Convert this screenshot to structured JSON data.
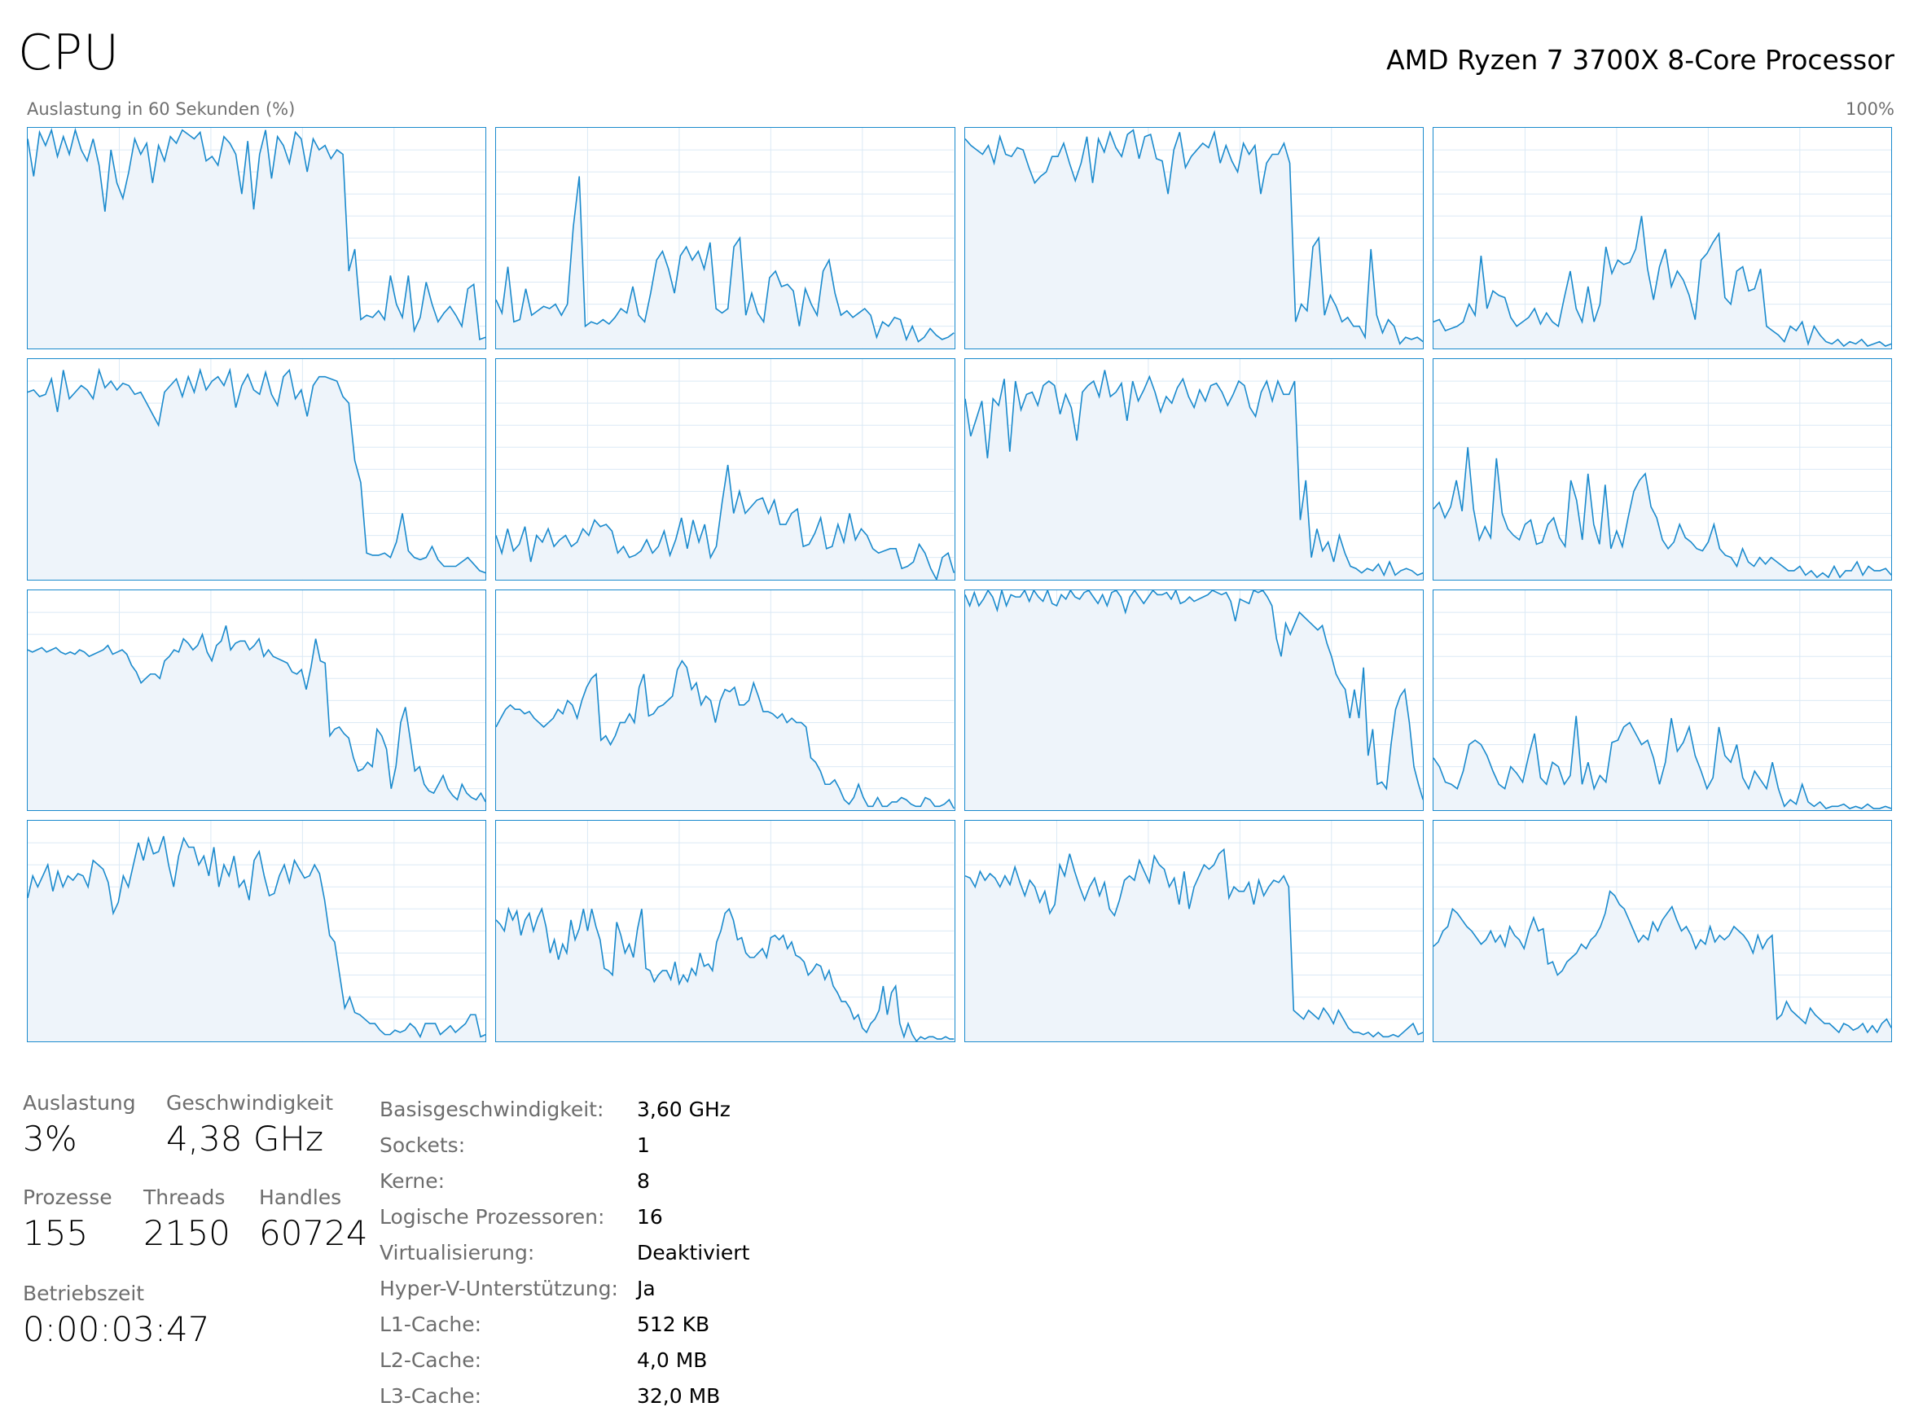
{
  "header": {
    "title": "CPU",
    "processor": "AMD Ryzen 7 3700X 8-Core Processor",
    "graph_label": "Auslastung in 60 Sekunden (%)",
    "graph_max": "100%"
  },
  "colors": {
    "line": "#1a8acd",
    "fill": "#eef4fa",
    "grid": "#dbe9f5"
  },
  "chart_data": {
    "type": "line",
    "y_range": [
      0,
      100
    ],
    "x_range_seconds": [
      0,
      60
    ],
    "grid": true,
    "cores": [
      [
        95,
        78,
        98,
        92,
        99,
        87,
        96,
        88,
        99,
        90,
        85,
        95,
        83,
        62,
        90,
        75,
        68,
        80,
        95,
        88,
        93,
        75,
        92,
        85,
        96,
        93,
        99,
        97,
        95,
        98,
        85,
        87,
        83,
        96,
        93,
        88,
        70,
        94,
        63,
        88,
        99,
        77,
        96,
        92,
        84,
        98,
        95,
        80,
        95,
        90,
        92,
        86,
        90,
        88,
        35,
        45,
        13,
        15,
        14,
        17,
        13,
        33,
        20,
        14,
        33,
        8,
        14,
        30,
        20,
        12,
        16,
        19,
        15,
        10,
        27,
        29,
        4,
        5
      ],
      [
        22,
        16,
        37,
        12,
        13,
        27,
        15,
        17,
        19,
        18,
        20,
        15,
        20,
        55,
        78,
        10,
        12,
        11,
        13,
        11,
        14,
        18,
        16,
        28,
        15,
        12,
        25,
        40,
        44,
        36,
        25,
        42,
        46,
        40,
        44,
        36,
        48,
        18,
        16,
        18,
        46,
        50,
        15,
        25,
        16,
        12,
        32,
        35,
        28,
        29,
        26,
        10,
        27,
        20,
        15,
        35,
        40,
        25,
        15,
        17,
        14,
        16,
        18,
        15,
        5,
        12,
        10,
        14,
        13,
        4,
        10,
        3,
        5,
        9,
        6,
        4,
        5,
        7
      ],
      [
        95,
        92,
        90,
        88,
        92,
        84,
        96,
        88,
        87,
        91,
        90,
        82,
        75,
        78,
        80,
        87,
        87,
        93,
        84,
        76,
        84,
        96,
        75,
        95,
        89,
        98,
        91,
        87,
        97,
        99,
        86,
        96,
        97,
        86,
        85,
        70,
        90,
        98,
        82,
        87,
        90,
        93,
        91,
        98,
        84,
        92,
        85,
        80,
        93,
        88,
        92,
        70,
        84,
        88,
        88,
        93,
        84,
        12,
        20,
        17,
        46,
        50,
        15,
        24,
        19,
        12,
        14,
        10,
        10,
        5,
        45,
        15,
        7,
        13,
        10,
        2,
        5,
        4,
        5,
        3
      ],
      [
        12,
        13,
        8,
        9,
        10,
        12,
        20,
        15,
        42,
        18,
        26,
        24,
        23,
        14,
        10,
        12,
        14,
        18,
        11,
        16,
        12,
        10,
        23,
        35,
        18,
        12,
        28,
        12,
        20,
        46,
        34,
        40,
        38,
        39,
        45,
        60,
        36,
        22,
        37,
        45,
        28,
        35,
        31,
        24,
        13,
        40,
        43,
        48,
        52,
        23,
        20,
        35,
        37,
        26,
        27,
        36,
        10,
        8,
        6,
        3,
        10,
        8,
        12,
        2,
        10,
        6,
        3,
        2,
        4,
        1,
        3,
        2,
        4,
        1,
        2,
        3,
        1,
        2
      ],
      [
        85,
        86,
        83,
        84,
        91,
        76,
        95,
        82,
        85,
        88,
        86,
        82,
        95,
        87,
        90,
        86,
        89,
        88,
        84,
        85,
        80,
        75,
        70,
        85,
        88,
        91,
        83,
        92,
        85,
        95,
        86,
        90,
        92,
        88,
        95,
        78,
        88,
        93,
        86,
        84,
        94,
        84,
        79,
        92,
        95,
        82,
        86,
        74,
        88,
        92,
        92,
        91,
        90,
        83,
        80,
        54,
        44,
        12,
        11,
        11,
        12,
        10,
        17,
        30,
        13,
        10,
        9,
        10,
        15,
        9,
        6,
        6,
        6,
        8,
        10,
        7,
        4,
        3
      ],
      [
        20,
        12,
        23,
        13,
        16,
        24,
        8,
        20,
        17,
        23,
        15,
        18,
        20,
        15,
        17,
        23,
        20,
        27,
        24,
        25,
        22,
        12,
        15,
        10,
        11,
        13,
        18,
        12,
        15,
        22,
        11,
        18,
        28,
        14,
        27,
        17,
        25,
        10,
        15,
        35,
        52,
        30,
        40,
        30,
        33,
        36,
        37,
        30,
        36,
        25,
        25,
        30,
        32,
        15,
        16,
        21,
        28,
        14,
        15,
        25,
        17,
        30,
        18,
        23,
        20,
        14,
        12,
        13,
        14,
        14,
        5,
        6,
        8,
        16,
        12,
        5,
        0,
        10,
        12,
        3
      ],
      [
        82,
        65,
        73,
        81,
        55,
        82,
        79,
        91,
        58,
        90,
        77,
        84,
        85,
        79,
        88,
        90,
        88,
        75,
        84,
        78,
        63,
        85,
        88,
        90,
        83,
        95,
        83,
        85,
        89,
        72,
        90,
        81,
        86,
        92,
        85,
        76,
        83,
        80,
        87,
        91,
        83,
        78,
        86,
        81,
        88,
        89,
        85,
        79,
        84,
        90,
        88,
        78,
        74,
        85,
        90,
        81,
        90,
        84,
        84,
        90,
        27,
        45,
        10,
        23,
        13,
        17,
        8,
        20,
        12,
        6,
        5,
        3,
        5,
        4,
        7,
        2,
        8,
        2,
        4,
        5,
        4,
        2,
        3
      ],
      [
        32,
        35,
        28,
        33,
        45,
        31,
        60,
        32,
        18,
        24,
        19,
        55,
        30,
        23,
        20,
        18,
        25,
        27,
        16,
        17,
        25,
        28,
        19,
        15,
        45,
        36,
        18,
        48,
        25,
        16,
        43,
        14,
        22,
        15,
        28,
        40,
        45,
        48,
        33,
        28,
        18,
        14,
        17,
        25,
        19,
        17,
        14,
        13,
        17,
        25,
        14,
        11,
        10,
        6,
        14,
        8,
        6,
        10,
        7,
        10,
        8,
        6,
        4,
        4,
        6,
        2,
        4,
        1,
        3,
        1,
        6,
        1,
        4,
        4,
        8,
        2,
        6,
        4,
        4,
        5,
        2
      ],
      [
        73,
        72,
        73,
        74,
        72,
        73,
        74,
        72,
        71,
        72,
        71,
        73,
        72,
        70,
        71,
        72,
        73,
        75,
        71,
        72,
        73,
        71,
        66,
        63,
        58,
        60,
        62,
        62,
        60,
        68,
        70,
        73,
        72,
        78,
        76,
        73,
        75,
        80,
        72,
        68,
        75,
        77,
        84,
        73,
        76,
        77,
        77,
        73,
        75,
        78,
        70,
        73,
        70,
        69,
        68,
        67,
        63,
        62,
        64,
        55,
        65,
        78,
        68,
        67,
        34,
        37,
        38,
        35,
        33,
        24,
        18,
        19,
        22,
        20,
        37,
        34,
        28,
        10,
        20,
        40,
        47,
        33,
        18,
        20,
        12,
        9,
        8,
        12,
        16,
        10,
        7,
        5,
        12,
        8,
        6,
        5,
        8,
        4
      ],
      [
        38,
        42,
        46,
        48,
        46,
        46,
        44,
        45,
        42,
        40,
        38,
        40,
        42,
        46,
        44,
        50,
        48,
        42,
        50,
        56,
        60,
        62,
        32,
        34,
        30,
        34,
        40,
        40,
        44,
        40,
        56,
        62,
        43,
        44,
        47,
        48,
        50,
        52,
        64,
        68,
        65,
        55,
        58,
        48,
        52,
        50,
        40,
        50,
        55,
        54,
        56,
        48,
        48,
        50,
        58,
        52,
        45,
        45,
        44,
        42,
        44,
        40,
        42,
        40,
        40,
        38,
        24,
        22,
        18,
        12,
        12,
        14,
        10,
        5,
        3,
        6,
        12,
        6,
        2,
        2,
        6,
        2,
        2,
        4,
        4,
        6,
        5,
        3,
        2,
        2,
        6,
        5,
        2,
        2,
        3,
        5,
        1
      ],
      [
        98,
        93,
        99,
        93,
        96,
        100,
        97,
        91,
        100,
        93,
        98,
        97,
        97,
        100,
        95,
        100,
        97,
        95,
        100,
        94,
        93,
        98,
        96,
        100,
        97,
        96,
        99,
        100,
        97,
        94,
        98,
        93,
        99,
        100,
        97,
        90,
        97,
        100,
        97,
        94,
        97,
        100,
        98,
        98,
        99,
        96,
        100,
        94,
        95,
        97,
        95,
        96,
        97,
        98,
        100,
        99,
        98,
        99,
        95,
        86,
        96,
        95,
        94,
        100,
        99,
        100,
        97,
        93,
        78,
        70,
        85,
        80,
        85,
        90,
        88,
        86,
        84,
        82,
        84,
        76,
        70,
        62,
        58,
        55,
        42,
        55,
        42,
        65,
        25,
        37,
        12,
        13,
        10,
        30,
        46,
        52,
        55,
        40,
        20,
        12,
        5
      ],
      [
        24,
        20,
        13,
        12,
        10,
        18,
        30,
        32,
        30,
        25,
        18,
        12,
        10,
        20,
        17,
        13,
        25,
        35,
        15,
        12,
        22,
        20,
        12,
        16,
        43,
        12,
        22,
        10,
        16,
        13,
        31,
        32,
        38,
        40,
        35,
        30,
        32,
        24,
        12,
        22,
        42,
        27,
        31,
        38,
        25,
        18,
        10,
        15,
        38,
        25,
        22,
        30,
        15,
        10,
        18,
        14,
        10,
        22,
        10,
        2,
        5,
        3,
        12,
        4,
        2,
        4,
        1,
        2,
        2,
        3,
        1,
        2,
        1,
        3,
        1,
        1,
        2,
        1
      ],
      [
        65,
        75,
        70,
        75,
        80,
        68,
        77,
        70,
        75,
        73,
        76,
        75,
        70,
        82,
        80,
        78,
        72,
        58,
        63,
        75,
        70,
        80,
        90,
        82,
        92,
        85,
        86,
        93,
        80,
        70,
        84,
        92,
        88,
        88,
        80,
        84,
        75,
        88,
        70,
        80,
        75,
        84,
        70,
        73,
        64,
        82,
        86,
        75,
        66,
        67,
        75,
        80,
        72,
        82,
        78,
        74,
        75,
        80,
        76,
        64,
        48,
        45,
        30,
        15,
        20,
        13,
        12,
        10,
        8,
        8,
        5,
        3,
        3,
        5,
        4,
        5,
        8,
        6,
        2,
        8,
        8,
        8,
        3,
        5,
        7,
        4,
        6,
        8,
        12,
        12,
        2,
        3
      ],
      [
        55,
        53,
        50,
        60,
        55,
        59,
        48,
        55,
        58,
        50,
        56,
        60,
        52,
        40,
        46,
        37,
        44,
        40,
        55,
        46,
        51,
        60,
        50,
        60,
        52,
        46,
        33,
        32,
        30,
        54,
        48,
        40,
        44,
        38,
        51,
        60,
        33,
        32,
        27,
        30,
        32,
        32,
        28,
        36,
        26,
        30,
        27,
        33,
        30,
        40,
        34,
        35,
        32,
        45,
        50,
        58,
        60,
        55,
        46,
        47,
        40,
        38,
        38,
        40,
        42,
        38,
        47,
        48,
        46,
        48,
        42,
        45,
        39,
        38,
        36,
        30,
        32,
        35,
        34,
        28,
        32,
        25,
        22,
        18,
        18,
        15,
        10,
        12,
        6,
        4,
        8,
        10,
        14,
        25,
        12,
        22,
        25,
        8,
        2,
        8,
        3,
        0,
        2,
        1,
        2,
        2,
        1,
        1,
        2,
        1,
        1
      ],
      [
        75,
        74,
        70,
        77,
        73,
        76,
        74,
        70,
        75,
        71,
        79,
        72,
        66,
        73,
        70,
        63,
        68,
        58,
        62,
        80,
        75,
        85,
        77,
        70,
        64,
        70,
        74,
        66,
        72,
        60,
        57,
        64,
        73,
        75,
        73,
        82,
        77,
        72,
        84,
        80,
        78,
        70,
        74,
        62,
        77,
        60,
        70,
        75,
        80,
        78,
        80,
        85,
        87,
        65,
        70,
        68,
        68,
        72,
        62,
        73,
        66,
        70,
        73,
        72,
        75,
        70,
        14,
        12,
        10,
        14,
        12,
        10,
        15,
        12,
        8,
        14,
        10,
        6,
        4,
        4,
        3,
        4,
        2,
        4,
        2,
        2,
        3,
        2,
        4,
        6,
        8,
        3,
        4
      ],
      [
        43,
        45,
        50,
        52,
        60,
        58,
        55,
        52,
        50,
        47,
        44,
        46,
        50,
        45,
        48,
        43,
        52,
        48,
        46,
        42,
        50,
        56,
        50,
        51,
        35,
        36,
        30,
        32,
        36,
        38,
        40,
        44,
        42,
        46,
        48,
        52,
        58,
        68,
        66,
        62,
        60,
        55,
        50,
        45,
        48,
        46,
        54,
        50,
        55,
        58,
        61,
        55,
        50,
        52,
        48,
        42,
        46,
        44,
        52,
        45,
        48,
        46,
        48,
        52,
        50,
        48,
        45,
        40,
        48,
        42,
        46,
        48,
        10,
        12,
        18,
        14,
        12,
        10,
        8,
        15,
        12,
        10,
        8,
        8,
        6,
        4,
        8,
        7,
        5,
        6,
        8,
        4,
        7,
        4,
        8,
        10,
        6
      ]
    ]
  },
  "stats": {
    "auslastung_label": "Auslastung",
    "auslastung": "3%",
    "geschwindigkeit_label": "Geschwindigkeit",
    "geschwindigkeit": "4,38 GHz",
    "prozesse_label": "Prozesse",
    "prozesse": "155",
    "threads_label": "Threads",
    "threads": "2150",
    "handles_label": "Handles",
    "handles": "60724",
    "betriebszeit_label": "Betriebszeit",
    "betriebszeit": "0:00:03:47"
  },
  "info": [
    {
      "k": "Basisgeschwindigkeit:",
      "v": "3,60 GHz"
    },
    {
      "k": "Sockets:",
      "v": "1"
    },
    {
      "k": "Kerne:",
      "v": "8"
    },
    {
      "k": "Logische Prozessoren:",
      "v": "16"
    },
    {
      "k": "Virtualisierung:",
      "v": "Deaktiviert"
    },
    {
      "k": "Hyper-V-Unterstützung:",
      "v": "Ja"
    },
    {
      "k": "L1-Cache:",
      "v": "512 KB"
    },
    {
      "k": "L2-Cache:",
      "v": "4,0 MB"
    },
    {
      "k": "L3-Cache:",
      "v": "32,0 MB"
    }
  ]
}
